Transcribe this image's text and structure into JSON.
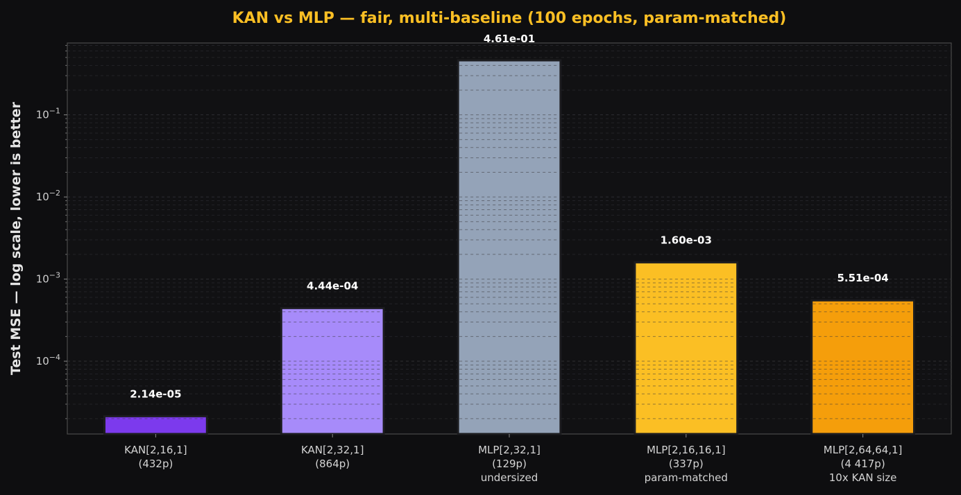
{
  "chart_data": {
    "type": "bar",
    "title": "KAN vs MLP — fair, multi-baseline (100 epochs, param-matched)",
    "xlabel": "",
    "ylabel": "Test MSE  —  log scale, lower is better",
    "yscale": "log",
    "ylim": [
      1.3e-05,
      0.75
    ],
    "ytick_values": [
      0.0001,
      0.001,
      0.01,
      0.1
    ],
    "ytick_labels": [
      "10",
      "10",
      "10",
      "10"
    ],
    "ytick_exponents": [
      "−4",
      "−3",
      "−2",
      "−1"
    ],
    "grid": true,
    "legend": "none",
    "categories": [
      [
        "KAN[2,16,1]",
        "(432p)"
      ],
      [
        "KAN[2,32,1]",
        "(864p)"
      ],
      [
        "MLP[2,32,1]",
        "(129p)",
        "undersized"
      ],
      [
        "MLP[2,16,16,1]",
        "(337p)",
        "param-matched"
      ],
      [
        "MLP[2,64,64,1]",
        "(4 417p)",
        "10x KAN size"
      ]
    ],
    "values": [
      2.14e-05,
      0.000444,
      0.461,
      0.0016,
      0.000551
    ],
    "value_labels": [
      "2.14e-05",
      "4.44e-04",
      "4.61e-01",
      "1.60e-03",
      "5.51e-04"
    ],
    "colors": [
      "#7c3aed",
      "#a78bfa",
      "#94a3b8",
      "#fbbf24",
      "#f59e0b"
    ]
  }
}
